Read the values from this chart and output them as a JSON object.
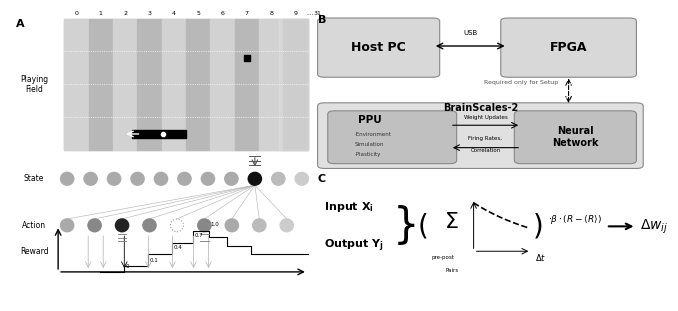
{
  "fig_width": 6.4,
  "fig_height": 2.91,
  "bg_color": "#ffffff",
  "stripe_light": "#d2d2d2",
  "stripe_dark": "#b8b8b8",
  "field_bg": "#c8c8c8",
  "state_circle_color": "#aaaaaa",
  "state_active_color": "#111111",
  "state_faint_color": "#cccccc",
  "action_colors": [
    "#aaaaaa",
    "#888888",
    "#222222",
    "#888888",
    "#aaaaaa",
    "#888888",
    "#aaaaaa",
    "#bbbbbb",
    "#cccccc"
  ],
  "col_labels": [
    "0",
    "1",
    "2",
    "3",
    "4",
    "5",
    "6",
    "7",
    "8",
    "9",
    "⋯",
    "31"
  ]
}
